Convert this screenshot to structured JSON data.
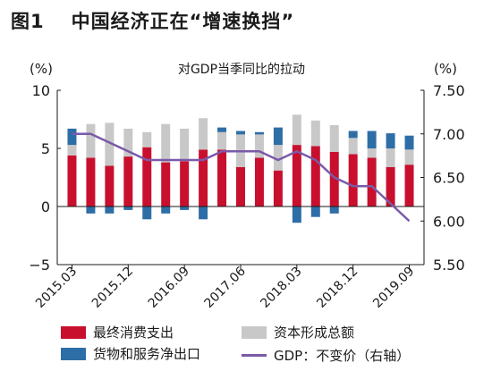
{
  "figure": {
    "number": "图1",
    "title": "中国经济正在“增速换挡”"
  },
  "chart_data": {
    "type": "bar",
    "subtitle": "对GDP当季同比的拉动",
    "left_unit": "(%)",
    "right_unit": "(%)",
    "left_ylim": [
      -5,
      10
    ],
    "right_ylim": [
      5.5,
      7.5
    ],
    "left_ticks": [
      "10",
      "5",
      "0",
      "−5"
    ],
    "right_ticks": [
      "7.50",
      "7.00",
      "6.50",
      "6.00",
      "5.50"
    ],
    "x_tick_labels": [
      "2015.03",
      "2015.12",
      "2016.09",
      "2017.06",
      "2018.03",
      "2018.12",
      "2019.09"
    ],
    "x_tick_indices": [
      0,
      3,
      6,
      9,
      12,
      15,
      18
    ],
    "categories": [
      "2015.03",
      "2015.06",
      "2015.09",
      "2015.12",
      "2016.03",
      "2016.06",
      "2016.09",
      "2016.12",
      "2017.03",
      "2017.06",
      "2017.09",
      "2017.12",
      "2018.03",
      "2018.06",
      "2018.09",
      "2018.12",
      "2019.03",
      "2019.06",
      "2019.09"
    ],
    "series": [
      {
        "name": "最终消费支出",
        "color": "#c8102e",
        "values": [
          4.4,
          4.2,
          3.5,
          4.3,
          5.1,
          3.8,
          3.9,
          4.9,
          4.9,
          3.4,
          4.2,
          3.1,
          5.3,
          5.2,
          4.7,
          4.5,
          4.2,
          3.4,
          3.6
        ]
      },
      {
        "name": "资本形成总额",
        "color": "#c8c8c8",
        "values": [
          0.9,
          2.9,
          3.7,
          2.4,
          1.3,
          3.3,
          2.8,
          2.7,
          1.5,
          2.8,
          2.0,
          2.2,
          2.6,
          2.2,
          2.3,
          1.4,
          0.8,
          1.6,
          1.3
        ]
      },
      {
        "name": "货物和服务净出口",
        "color": "#2e6ea6",
        "values": [
          1.4,
          -0.6,
          -0.6,
          -0.3,
          -1.1,
          -0.6,
          -0.3,
          -1.1,
          0.4,
          0.3,
          0.2,
          1.5,
          -1.4,
          -0.9,
          -0.6,
          0.6,
          1.5,
          1.3,
          1.2
        ]
      },
      {
        "name": "GDP：不变价（右轴）",
        "color": "#7a5aa8",
        "axis": "right",
        "values": [
          7.0,
          7.0,
          6.9,
          6.8,
          6.7,
          6.7,
          6.7,
          6.7,
          6.8,
          6.8,
          6.8,
          6.7,
          6.8,
          6.7,
          6.5,
          6.4,
          6.4,
          6.2,
          6.0
        ]
      }
    ],
    "legend_placement": "bottom",
    "grid": false
  }
}
